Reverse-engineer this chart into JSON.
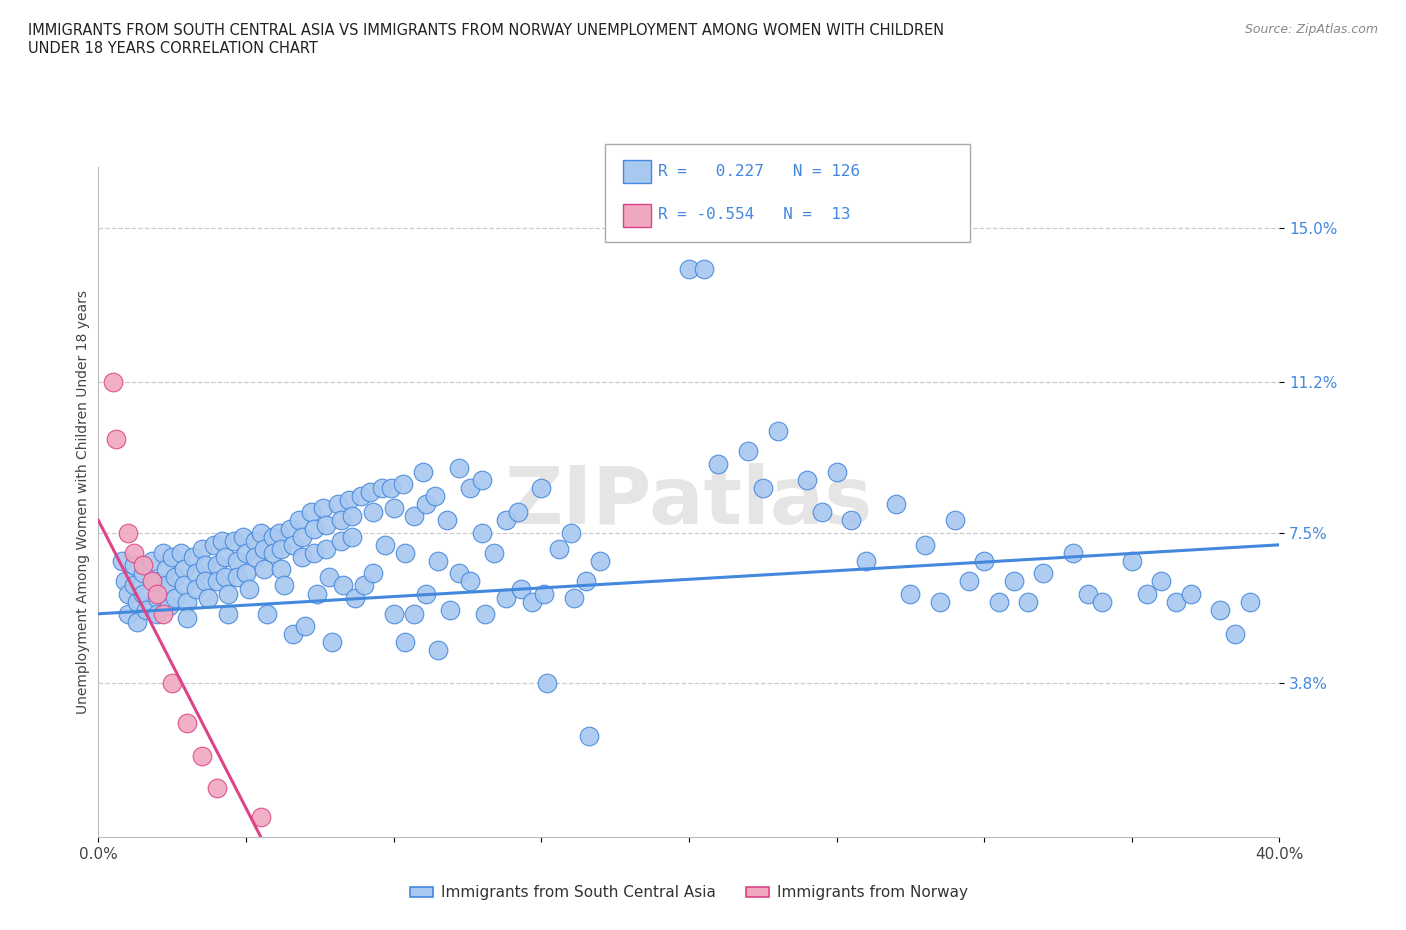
{
  "title": "IMMIGRANTS FROM SOUTH CENTRAL ASIA VS IMMIGRANTS FROM NORWAY UNEMPLOYMENT AMONG WOMEN WITH CHILDREN\nUNDER 18 YEARS CORRELATION CHART",
  "source": "Source: ZipAtlas.com",
  "xlabel_bottom": "Immigrants from South Central Asia",
  "xlabel_bottom2": "Immigrants from Norway",
  "ylabel": "Unemployment Among Women with Children Under 18 years",
  "xlim": [
    0.0,
    0.4
  ],
  "ylim": [
    0.0,
    0.165
  ],
  "ytick_positions": [
    0.038,
    0.075,
    0.112,
    0.15
  ],
  "ytick_labels": [
    "3.8%",
    "7.5%",
    "11.2%",
    "15.0%"
  ],
  "color_blue": "#a8c8f0",
  "color_pink": "#f0a8c0",
  "line_blue": "#4488dd",
  "line_pink": "#dd4488",
  "watermark": "ZIPatlas",
  "grid_color": "#cccccc",
  "blue_scatter": [
    [
      0.008,
      0.068
    ],
    [
      0.009,
      0.063
    ],
    [
      0.01,
      0.06
    ],
    [
      0.01,
      0.055
    ],
    [
      0.012,
      0.067
    ],
    [
      0.012,
      0.062
    ],
    [
      0.013,
      0.058
    ],
    [
      0.013,
      0.053
    ],
    [
      0.015,
      0.065
    ],
    [
      0.015,
      0.06
    ],
    [
      0.016,
      0.056
    ],
    [
      0.018,
      0.068
    ],
    [
      0.019,
      0.063
    ],
    [
      0.02,
      0.059
    ],
    [
      0.02,
      0.055
    ],
    [
      0.022,
      0.07
    ],
    [
      0.023,
      0.066
    ],
    [
      0.023,
      0.062
    ],
    [
      0.024,
      0.057
    ],
    [
      0.025,
      0.069
    ],
    [
      0.026,
      0.064
    ],
    [
      0.026,
      0.059
    ],
    [
      0.028,
      0.07
    ],
    [
      0.029,
      0.066
    ],
    [
      0.029,
      0.062
    ],
    [
      0.03,
      0.058
    ],
    [
      0.03,
      0.054
    ],
    [
      0.032,
      0.069
    ],
    [
      0.033,
      0.065
    ],
    [
      0.033,
      0.061
    ],
    [
      0.035,
      0.071
    ],
    [
      0.036,
      0.067
    ],
    [
      0.036,
      0.063
    ],
    [
      0.037,
      0.059
    ],
    [
      0.039,
      0.072
    ],
    [
      0.04,
      0.067
    ],
    [
      0.04,
      0.063
    ],
    [
      0.042,
      0.073
    ],
    [
      0.043,
      0.069
    ],
    [
      0.043,
      0.064
    ],
    [
      0.044,
      0.06
    ],
    [
      0.044,
      0.055
    ],
    [
      0.046,
      0.073
    ],
    [
      0.047,
      0.068
    ],
    [
      0.047,
      0.064
    ],
    [
      0.049,
      0.074
    ],
    [
      0.05,
      0.07
    ],
    [
      0.05,
      0.065
    ],
    [
      0.051,
      0.061
    ],
    [
      0.053,
      0.073
    ],
    [
      0.053,
      0.069
    ],
    [
      0.055,
      0.075
    ],
    [
      0.056,
      0.071
    ],
    [
      0.056,
      0.066
    ],
    [
      0.057,
      0.055
    ],
    [
      0.059,
      0.074
    ],
    [
      0.059,
      0.07
    ],
    [
      0.061,
      0.075
    ],
    [
      0.062,
      0.071
    ],
    [
      0.062,
      0.066
    ],
    [
      0.063,
      0.062
    ],
    [
      0.065,
      0.076
    ],
    [
      0.066,
      0.072
    ],
    [
      0.066,
      0.05
    ],
    [
      0.068,
      0.078
    ],
    [
      0.069,
      0.074
    ],
    [
      0.069,
      0.069
    ],
    [
      0.07,
      0.052
    ],
    [
      0.072,
      0.08
    ],
    [
      0.073,
      0.076
    ],
    [
      0.073,
      0.07
    ],
    [
      0.074,
      0.06
    ],
    [
      0.076,
      0.081
    ],
    [
      0.077,
      0.077
    ],
    [
      0.077,
      0.071
    ],
    [
      0.078,
      0.064
    ],
    [
      0.079,
      0.048
    ],
    [
      0.081,
      0.082
    ],
    [
      0.082,
      0.078
    ],
    [
      0.082,
      0.073
    ],
    [
      0.083,
      0.062
    ],
    [
      0.085,
      0.083
    ],
    [
      0.086,
      0.079
    ],
    [
      0.086,
      0.074
    ],
    [
      0.087,
      0.059
    ],
    [
      0.089,
      0.084
    ],
    [
      0.09,
      0.062
    ],
    [
      0.092,
      0.085
    ],
    [
      0.093,
      0.08
    ],
    [
      0.093,
      0.065
    ],
    [
      0.096,
      0.086
    ],
    [
      0.097,
      0.072
    ],
    [
      0.099,
      0.086
    ],
    [
      0.1,
      0.081
    ],
    [
      0.1,
      0.055
    ],
    [
      0.103,
      0.087
    ],
    [
      0.104,
      0.07
    ],
    [
      0.104,
      0.048
    ],
    [
      0.107,
      0.079
    ],
    [
      0.107,
      0.055
    ],
    [
      0.11,
      0.09
    ],
    [
      0.111,
      0.082
    ],
    [
      0.111,
      0.06
    ],
    [
      0.114,
      0.084
    ],
    [
      0.115,
      0.068
    ],
    [
      0.115,
      0.046
    ],
    [
      0.118,
      0.078
    ],
    [
      0.119,
      0.056
    ],
    [
      0.122,
      0.091
    ],
    [
      0.122,
      0.065
    ],
    [
      0.126,
      0.086
    ],
    [
      0.126,
      0.063
    ],
    [
      0.13,
      0.088
    ],
    [
      0.13,
      0.075
    ],
    [
      0.131,
      0.055
    ],
    [
      0.134,
      0.07
    ],
    [
      0.138,
      0.078
    ],
    [
      0.138,
      0.059
    ],
    [
      0.142,
      0.08
    ],
    [
      0.143,
      0.061
    ],
    [
      0.147,
      0.058
    ],
    [
      0.15,
      0.086
    ],
    [
      0.151,
      0.06
    ],
    [
      0.152,
      0.038
    ],
    [
      0.156,
      0.071
    ],
    [
      0.16,
      0.075
    ],
    [
      0.161,
      0.059
    ],
    [
      0.165,
      0.063
    ],
    [
      0.166,
      0.025
    ],
    [
      0.17,
      0.068
    ],
    [
      0.2,
      0.14
    ],
    [
      0.205,
      0.14
    ],
    [
      0.21,
      0.092
    ],
    [
      0.22,
      0.095
    ],
    [
      0.225,
      0.086
    ],
    [
      0.23,
      0.1
    ],
    [
      0.24,
      0.088
    ],
    [
      0.245,
      0.08
    ],
    [
      0.25,
      0.09
    ],
    [
      0.255,
      0.078
    ],
    [
      0.26,
      0.068
    ],
    [
      0.27,
      0.082
    ],
    [
      0.275,
      0.06
    ],
    [
      0.28,
      0.072
    ],
    [
      0.285,
      0.058
    ],
    [
      0.29,
      0.078
    ],
    [
      0.295,
      0.063
    ],
    [
      0.3,
      0.068
    ],
    [
      0.305,
      0.058
    ],
    [
      0.31,
      0.063
    ],
    [
      0.315,
      0.058
    ],
    [
      0.32,
      0.065
    ],
    [
      0.33,
      0.07
    ],
    [
      0.335,
      0.06
    ],
    [
      0.34,
      0.058
    ],
    [
      0.35,
      0.068
    ],
    [
      0.355,
      0.06
    ],
    [
      0.36,
      0.063
    ],
    [
      0.365,
      0.058
    ],
    [
      0.37,
      0.06
    ],
    [
      0.38,
      0.056
    ],
    [
      0.385,
      0.05
    ],
    [
      0.39,
      0.058
    ]
  ],
  "pink_scatter": [
    [
      0.005,
      0.112
    ],
    [
      0.006,
      0.098
    ],
    [
      0.01,
      0.075
    ],
    [
      0.012,
      0.07
    ],
    [
      0.015,
      0.067
    ],
    [
      0.018,
      0.063
    ],
    [
      0.02,
      0.06
    ],
    [
      0.022,
      0.055
    ],
    [
      0.025,
      0.038
    ],
    [
      0.03,
      0.028
    ],
    [
      0.035,
      0.02
    ],
    [
      0.04,
      0.012
    ],
    [
      0.055,
      0.005
    ]
  ],
  "blue_line_x": [
    0.0,
    0.4
  ],
  "blue_line_y": [
    0.055,
    0.072
  ],
  "pink_line_x": [
    0.0,
    0.055
  ],
  "pink_line_y": [
    0.078,
    0.0
  ]
}
